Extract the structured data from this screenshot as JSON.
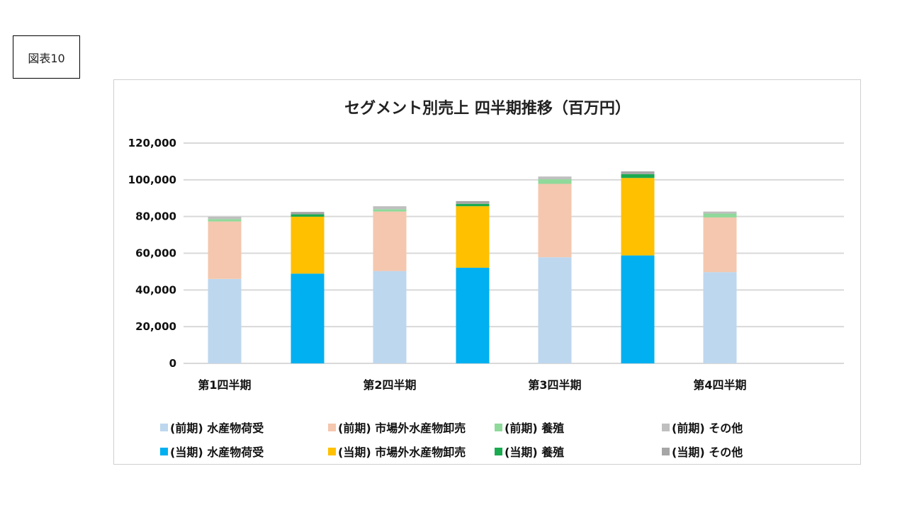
{
  "figure_label": "図表10",
  "chart_data": {
    "type": "bar",
    "stacked": true,
    "title": "セグメント別売上 四半期推移（百万円）",
    "categories": [
      "第1四半期",
      "第2四半期",
      "第3四半期",
      "第4四半期"
    ],
    "ylim": [
      0,
      120000
    ],
    "yticks": [
      "0",
      "20,000",
      "40,000",
      "60,000",
      "80,000",
      "100,000",
      "120,000"
    ],
    "grid": true,
    "legend_position": "bottom",
    "groups": [
      {
        "name": "前期",
        "series": [
          {
            "name": "(前期) 水産物荷受",
            "color": "#BDD7EE",
            "values": [
              46000,
              50300,
              57800,
              49700
            ]
          },
          {
            "name": "(前期) 市場外水産物卸売",
            "color": "#F4C7AE",
            "values": [
              31300,
              32400,
              40000,
              29800
            ]
          },
          {
            "name": "(前期) 養殖",
            "color": "#8FD99A",
            "values": [
              1300,
              1300,
              2500,
              2100
            ]
          },
          {
            "name": "(前期) その他",
            "color": "#BFBFBF",
            "values": [
              1300,
              1600,
              1500,
              1100
            ]
          }
        ]
      },
      {
        "name": "当期",
        "series": [
          {
            "name": "(当期) 水産物荷受",
            "color": "#00B0F0",
            "values": [
              48900,
              52100,
              58800,
              null
            ]
          },
          {
            "name": "(当期) 市場外水産物卸売",
            "color": "#FFC000",
            "values": [
              31000,
              33500,
              42200,
              null
            ]
          },
          {
            "name": "(当期) 養殖",
            "color": "#1AAA50",
            "values": [
              1300,
              1300,
              2100,
              null
            ]
          },
          {
            "name": "(当期) その他",
            "color": "#A6A6A6",
            "values": [
              1300,
              1500,
              1500,
              null
            ]
          }
        ]
      }
    ]
  }
}
